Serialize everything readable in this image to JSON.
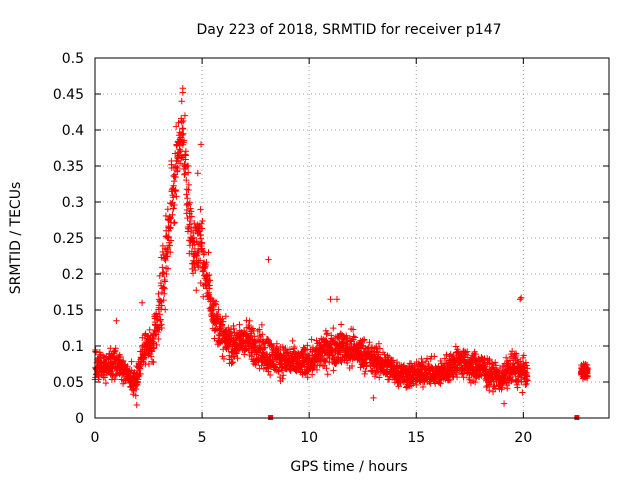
{
  "chart_data": {
    "type": "scatter",
    "title": "Day 223 of 2018, SRMTID for receiver p147",
    "xlabel": "GPS time / hours",
    "ylabel": "SRMTID / TECUs",
    "xlim": [
      0,
      24
    ],
    "ylim": [
      0,
      0.5
    ],
    "xticks": [
      "0",
      "5",
      "10",
      "15",
      "20"
    ],
    "yticks": [
      "0",
      "0.05",
      "0.1",
      "0.15",
      "0.2",
      "0.25",
      "0.3",
      "0.35",
      "0.4",
      "0.45",
      "0.5"
    ],
    "xtick_values": [
      0,
      5,
      10,
      15,
      20
    ],
    "ytick_values": [
      0,
      0.05,
      0.1,
      0.15,
      0.2,
      0.25,
      0.3,
      0.35,
      0.4,
      0.45,
      0.5
    ],
    "grid": true,
    "marker": "+",
    "color": "#ff0000",
    "series": [
      {
        "name": "SRMTID",
        "profile": [
          [
            0.0,
            0.075,
            0.03
          ],
          [
            0.5,
            0.07,
            0.025
          ],
          [
            1.0,
            0.08,
            0.03
          ],
          [
            1.5,
            0.06,
            0.025
          ],
          [
            1.9,
            0.05,
            0.025
          ],
          [
            2.3,
            0.1,
            0.035
          ],
          [
            2.7,
            0.1,
            0.035
          ],
          [
            3.0,
            0.14,
            0.06
          ],
          [
            3.3,
            0.22,
            0.08
          ],
          [
            3.6,
            0.3,
            0.07
          ],
          [
            3.9,
            0.37,
            0.06
          ],
          [
            4.1,
            0.4,
            0.05
          ],
          [
            4.3,
            0.3,
            0.08
          ],
          [
            4.6,
            0.23,
            0.07
          ],
          [
            4.9,
            0.25,
            0.07
          ],
          [
            5.2,
            0.19,
            0.04
          ],
          [
            5.6,
            0.14,
            0.04
          ],
          [
            6.0,
            0.11,
            0.035
          ],
          [
            6.5,
            0.1,
            0.035
          ],
          [
            7.0,
            0.11,
            0.035
          ],
          [
            7.5,
            0.1,
            0.04
          ],
          [
            8.0,
            0.09,
            0.04
          ],
          [
            8.5,
            0.08,
            0.03
          ],
          [
            9.0,
            0.08,
            0.03
          ],
          [
            9.5,
            0.075,
            0.03
          ],
          [
            10.0,
            0.08,
            0.03
          ],
          [
            10.5,
            0.09,
            0.035
          ],
          [
            11.0,
            0.095,
            0.035
          ],
          [
            11.5,
            0.1,
            0.035
          ],
          [
            12.0,
            0.095,
            0.035
          ],
          [
            12.5,
            0.09,
            0.03
          ],
          [
            13.0,
            0.08,
            0.03
          ],
          [
            13.5,
            0.075,
            0.03
          ],
          [
            14.0,
            0.065,
            0.025
          ],
          [
            14.5,
            0.06,
            0.025
          ],
          [
            15.0,
            0.06,
            0.025
          ],
          [
            15.5,
            0.065,
            0.025
          ],
          [
            16.0,
            0.06,
            0.025
          ],
          [
            16.5,
            0.07,
            0.03
          ],
          [
            17.0,
            0.08,
            0.03
          ],
          [
            17.5,
            0.07,
            0.03
          ],
          [
            18.0,
            0.07,
            0.03
          ],
          [
            18.5,
            0.06,
            0.025
          ],
          [
            19.0,
            0.055,
            0.025
          ],
          [
            19.5,
            0.07,
            0.035
          ],
          [
            20.2,
            0.06,
            0.025
          ]
        ],
        "late_segment": {
          "x_range": [
            22.7,
            23.0
          ],
          "y_center": 0.065,
          "y_spread": 0.012
        },
        "notable_points": [
          {
            "x": 4.1,
            "y": 0.458
          },
          {
            "x": 4.1,
            "y": 0.452
          },
          {
            "x": 4.05,
            "y": 0.44
          },
          {
            "x": 3.9,
            "y": 0.41
          },
          {
            "x": 4.2,
            "y": 0.42
          },
          {
            "x": 4.95,
            "y": 0.38
          },
          {
            "x": 4.35,
            "y": 0.35
          },
          {
            "x": 4.8,
            "y": 0.34
          },
          {
            "x": 3.4,
            "y": 0.29
          },
          {
            "x": 8.1,
            "y": 0.22
          },
          {
            "x": 19.9,
            "y": 0.167
          },
          {
            "x": 19.85,
            "y": 0.165
          },
          {
            "x": 11.0,
            "y": 0.165
          },
          {
            "x": 11.3,
            "y": 0.165
          },
          {
            "x": 1.0,
            "y": 0.135
          },
          {
            "x": 1.95,
            "y": 0.018
          },
          {
            "x": 19.1,
            "y": 0.02
          },
          {
            "x": 13.0,
            "y": 0.028
          },
          {
            "x": 5.3,
            "y": 0.23
          },
          {
            "x": 2.2,
            "y": 0.16
          }
        ]
      }
    ],
    "gap_markers_at_zero": [
      8.2,
      22.5
    ]
  }
}
